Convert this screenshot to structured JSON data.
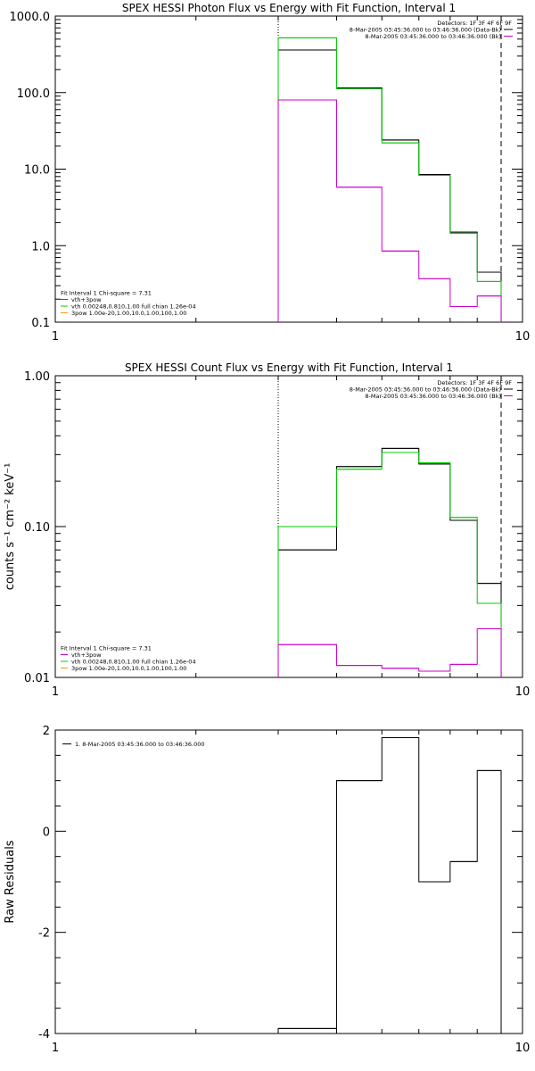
{
  "colors": {
    "axis": "#000000",
    "data": "#000000",
    "model": "#00cc00",
    "background": "#cc00cc"
  },
  "chart_data": [
    {
      "type": "line",
      "title": "SPEX HESSI Photon Flux vs Energy with Fit Function, Interval 1",
      "xlabel": "",
      "ylabel": "",
      "xscale": "log",
      "yscale": "log",
      "xlim": [
        1,
        10
      ],
      "ylim": [
        0.1,
        1000
      ],
      "xticks": [
        {
          "v": 1,
          "label": "1"
        },
        {
          "v": 10,
          "label": "10"
        }
      ],
      "yticks": [
        {
          "v": 0.1,
          "label": "0.1"
        },
        {
          "v": 1,
          "label": "1.0"
        },
        {
          "v": 10,
          "label": "10.0"
        },
        {
          "v": 100,
          "label": "100.0"
        },
        {
          "v": 1000,
          "label": "1000.0"
        }
      ],
      "bin_edges": [
        3,
        4,
        5,
        6,
        7,
        8,
        9
      ],
      "series": [
        {
          "color": "#000000",
          "values": [
            360,
            115,
            24,
            8.5,
            1.5,
            0.45
          ]
        },
        {
          "color": "#00cc00",
          "values": [
            520,
            112,
            22,
            8.3,
            1.45,
            0.34
          ]
        },
        {
          "color": "#cc00cc",
          "values": [
            80,
            5.8,
            0.85,
            0.37,
            0.16,
            0.22
          ]
        }
      ],
      "vlines": [
        {
          "x": 3,
          "style": "dotted"
        },
        {
          "x": 9,
          "style": "dashed"
        }
      ],
      "legend": {
        "position": "top-right",
        "header": "Detectors: 1F 3F 4F 6F 9F",
        "entries": [
          {
            "text": "8-Mar-2005 03:45:36.000 to 03:46:36.000 (Data-Bk)",
            "color": "#000000"
          },
          {
            "text": "8-Mar-2005 03:45:36.000 to 03:46:36.000 (Bk)",
            "color": "#cc00cc"
          }
        ]
      },
      "fit_legend": {
        "position": "bottom-left",
        "header": "Fit Interval 1    Chi-square = 7.31",
        "entries": [
          {
            "text": "vth+3pow",
            "color": "#cc00cc"
          },
          {
            "text": "vth 0.00248,0.810,1.00   full chian 1.26e-04",
            "color": "#00cc00"
          },
          {
            "text": "3pow 1.00e-20,1.00,10.0,1.00,100,1.00",
            "color": "#ff9900"
          }
        ]
      }
    },
    {
      "type": "line",
      "title": "SPEX HESSI Count Flux vs Energy with Fit Function, Interval 1",
      "xlabel": "",
      "ylabel": "counts s⁻¹ cm⁻² keV⁻¹",
      "xscale": "log",
      "yscale": "log",
      "xlim": [
        1,
        10
      ],
      "ylim": [
        0.01,
        1
      ],
      "xticks": [
        {
          "v": 1,
          "label": "1"
        },
        {
          "v": 10,
          "label": "10"
        }
      ],
      "yticks": [
        {
          "v": 0.01,
          "label": "0.01"
        },
        {
          "v": 0.1,
          "label": "0.10"
        },
        {
          "v": 1,
          "label": "1.00"
        }
      ],
      "bin_edges": [
        3,
        4,
        5,
        6,
        7,
        8,
        9
      ],
      "series": [
        {
          "color": "#000000",
          "values": [
            0.07,
            0.25,
            0.33,
            0.26,
            0.11,
            0.042
          ]
        },
        {
          "color": "#00cc00",
          "values": [
            0.1,
            0.24,
            0.31,
            0.265,
            0.115,
            0.031
          ]
        },
        {
          "color": "#cc00cc",
          "values": [
            0.0165,
            0.012,
            0.0115,
            0.011,
            0.0122,
            0.021
          ]
        }
      ],
      "vlines": [
        {
          "x": 3,
          "style": "dotted"
        },
        {
          "x": 9,
          "style": "dashed"
        }
      ],
      "legend": {
        "position": "top-right",
        "header": "Detectors: 1F 3F 4F 6F 9F",
        "entries": [
          {
            "text": "8-Mar-2005 03:45:36.000 to 03:46:36.000 (Data-Bk)",
            "color": "#000000"
          },
          {
            "text": "8-Mar-2005 03:45:36.000 to 03:46:36.000 (Bk)",
            "color": "#cc00cc"
          }
        ]
      },
      "fit_legend": {
        "position": "bottom-left",
        "header": "Fit Interval 1    Chi-square = 7.31",
        "entries": [
          {
            "text": "vth+3pow",
            "color": "#cc00cc"
          },
          {
            "text": "vth 0.00248,0.810,1.00   full chian 1.26e-04",
            "color": "#00cc00"
          },
          {
            "text": "3pow 1.00e-20,1.00,10.0,1.00,100,1.00",
            "color": "#ff9900"
          }
        ]
      }
    },
    {
      "type": "line",
      "title": "",
      "xlabel": "",
      "ylabel": "Raw Residuals",
      "xscale": "log",
      "yscale": "linear",
      "xlim": [
        1,
        10
      ],
      "ylim": [
        -4,
        2
      ],
      "xticks": [
        {
          "v": 1,
          "label": "1"
        },
        {
          "v": 10,
          "label": "10"
        }
      ],
      "yticks": [
        {
          "v": -4,
          "label": "-4"
        },
        {
          "v": -2,
          "label": "-2"
        },
        {
          "v": 0,
          "label": "0"
        },
        {
          "v": 2,
          "label": "2"
        }
      ],
      "bin_edges": [
        3,
        4,
        5,
        6,
        7,
        8,
        9
      ],
      "series": [
        {
          "color": "#000000",
          "values": [
            -3.9,
            1.0,
            1.85,
            -1.0,
            -0.6,
            1.2
          ]
        }
      ],
      "vlines": [],
      "legend": {
        "position": "top-left",
        "header": "",
        "entries": [
          {
            "text": "1.  8-Mar-2005 03:45:36.000 to 03:46:36.000",
            "color": "#000000"
          }
        ]
      },
      "fit_legend": null
    }
  ]
}
